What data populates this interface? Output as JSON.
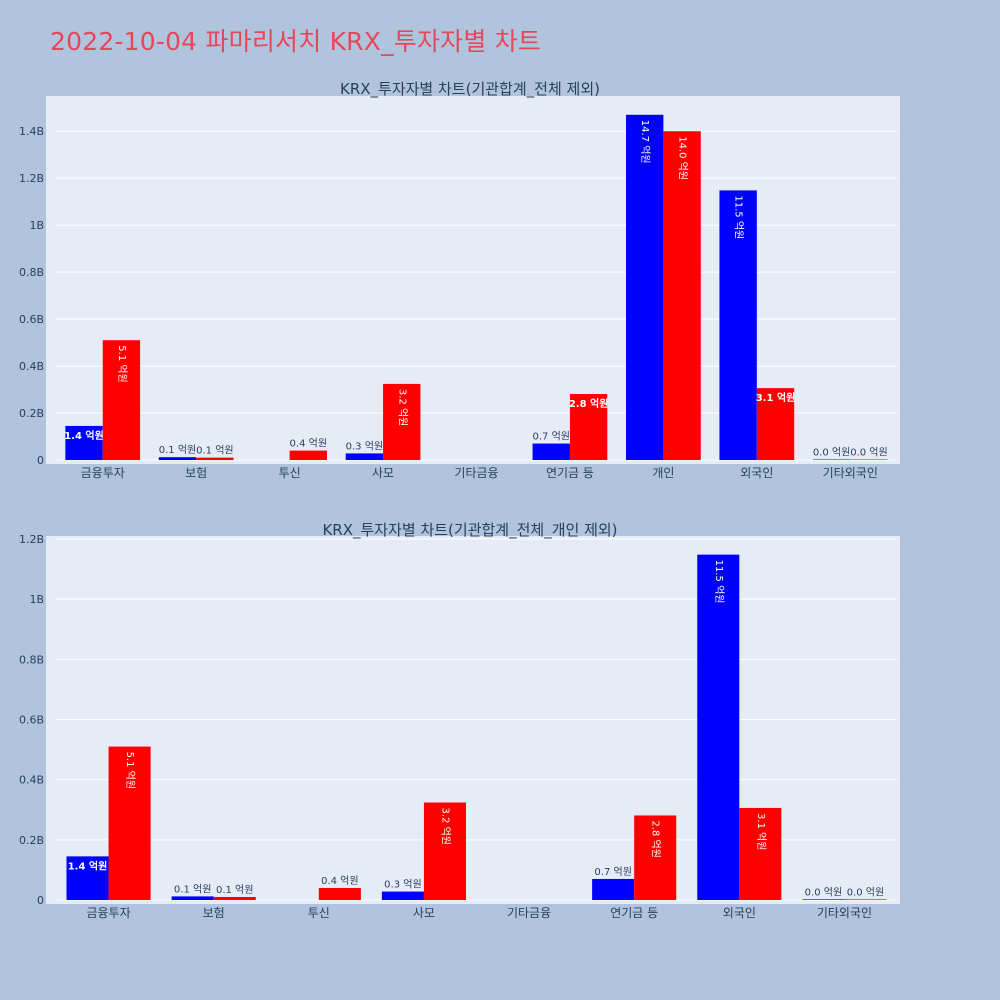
{
  "page": {
    "title": "2022-10-04 파마리서치 KRX_투자자별 차트"
  },
  "colors": {
    "background": "#b0c4de",
    "plot_background": "#e5ecf6",
    "title": "#e8475a",
    "series_blue": "#0000ff",
    "series_red": "#ff0000"
  },
  "chart_data": [
    {
      "type": "bar",
      "title": "KRX_투자자별 차트(기관합계_전체 제외)",
      "categories": [
        "금융투자",
        "보험",
        "투신",
        "사모",
        "기타금융",
        "연기금 등",
        "개인",
        "외국인",
        "기타외국인"
      ],
      "series": [
        {
          "color": "#0000ff",
          "values": [
            145000000,
            12000000,
            0,
            28000000,
            0,
            70000000,
            1470000000,
            1148000000,
            2000000
          ],
          "labels": [
            "1.4 억원",
            "0.1 억원",
            "",
            "0.3 억원",
            "",
            "0.7 억원",
            "14.7 억원",
            "11.5 억원",
            "0.0 억원"
          ]
        },
        {
          "color": "#ff0000",
          "values": [
            510000000,
            10000000,
            40000000,
            324000000,
            0,
            281000000,
            1400000000,
            306000000,
            2000000
          ],
          "labels": [
            "5.1 억원",
            "0.1 억원",
            "0.4 억원",
            "3.2 억원",
            "",
            "2.8 억원",
            "14.0 억원",
            "3.1 억원",
            "0.0 억원"
          ]
        }
      ],
      "yticks": [
        "0",
        "0.2B",
        "0.4B",
        "0.6B",
        "0.8B",
        "1B",
        "1.2B",
        "1.4B"
      ],
      "ylim": [
        0,
        1550000000
      ],
      "grid": true
    },
    {
      "type": "bar",
      "title": "KRX_투자자별 차트(기관합계_전체_개인 제외)",
      "categories": [
        "금융투자",
        "보험",
        "투신",
        "사모",
        "기타금융",
        "연기금 등",
        "외국인",
        "기타외국인"
      ],
      "series": [
        {
          "color": "#0000ff",
          "values": [
            145000000,
            12000000,
            0,
            28000000,
            0,
            70000000,
            1148000000,
            2000000
          ],
          "labels": [
            "1.4 억원",
            "0.1 억원",
            "",
            "0.3 억원",
            "",
            "0.7 억원",
            "11.5 억원",
            "0.0 억원"
          ]
        },
        {
          "color": "#ff0000",
          "values": [
            510000000,
            10000000,
            40000000,
            324000000,
            0,
            281000000,
            306000000,
            2000000
          ],
          "labels": [
            "5.1 억원",
            "0.1 억원",
            "0.4 억원",
            "3.2 억원",
            "",
            "2.8 억원",
            "3.1 억원",
            "0.0 억원"
          ]
        }
      ],
      "yticks": [
        "0",
        "0.2B",
        "0.4B",
        "0.6B",
        "0.8B",
        "1B",
        "1.2B"
      ],
      "ylim": [
        0,
        1210000000
      ],
      "grid": true
    }
  ]
}
